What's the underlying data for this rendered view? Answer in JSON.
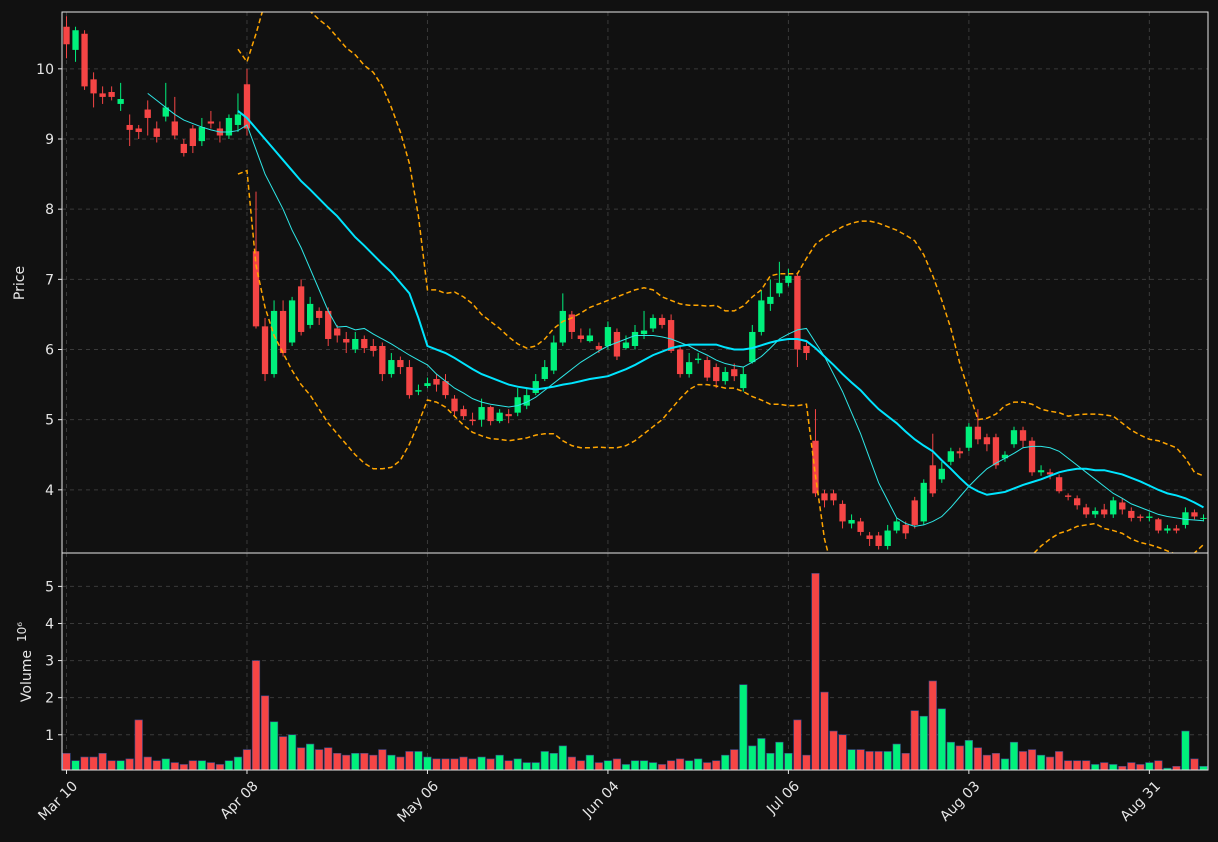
{
  "chart_data": {
    "type": "candlestick",
    "ylabel": "Price",
    "categories": [
      "Mar 10",
      null,
      null,
      null,
      null,
      null,
      null,
      null,
      null,
      null,
      null,
      null,
      null,
      null,
      null,
      null,
      null,
      null,
      null,
      null,
      "Apr 08",
      null,
      null,
      null,
      null,
      null,
      null,
      null,
      null,
      null,
      null,
      null,
      null,
      null,
      null,
      null,
      null,
      null,
      null,
      null,
      "May 06",
      null,
      null,
      null,
      null,
      null,
      null,
      null,
      null,
      null,
      null,
      null,
      null,
      null,
      null,
      null,
      null,
      null,
      null,
      null,
      "Jun 04",
      null,
      null,
      null,
      null,
      null,
      null,
      null,
      null,
      null,
      null,
      null,
      null,
      null,
      null,
      null,
      null,
      null,
      null,
      null,
      "Jul 06",
      null,
      null,
      null,
      null,
      null,
      null,
      null,
      null,
      null,
      null,
      null,
      null,
      null,
      null,
      null,
      null,
      null,
      null,
      null,
      "Aug 03",
      null,
      null,
      null,
      null,
      null,
      null,
      null,
      null,
      null,
      null,
      null,
      null,
      null,
      null,
      null,
      null,
      null,
      null,
      null,
      "Aug 31",
      null,
      null,
      null,
      null,
      null,
      null
    ],
    "open": [
      10.6,
      10.27,
      10.5,
      9.85,
      9.65,
      9.67,
      9.5,
      9.2,
      9.15,
      9.42,
      9.15,
      9.32,
      9.25,
      8.93,
      9.15,
      8.97,
      9.25,
      9.15,
      9.05,
      9.2,
      9.78,
      7.4,
      6.33,
      5.65,
      6.55,
      6.1,
      6.9,
      6.35,
      6.55,
      6.55,
      6.3,
      6.15,
      6.0,
      6.15,
      6.05,
      6.05,
      5.65,
      5.85,
      5.75,
      5.4,
      5.48,
      5.58,
      5.55,
      5.3,
      5.15,
      5.0,
      5.0,
      5.18,
      4.98,
      5.08,
      5.1,
      5.2,
      5.38,
      5.58,
      5.7,
      6.1,
      6.5,
      6.2,
      6.12,
      6.05,
      6.05,
      6.25,
      6.02,
      6.05,
      6.22,
      6.3,
      6.45,
      6.42,
      6.0,
      5.65,
      5.85,
      5.85,
      5.75,
      5.55,
      5.72,
      5.45,
      5.82,
      6.25,
      6.65,
      6.8,
      6.95,
      7.05,
      6.05,
      4.7,
      3.95,
      3.95,
      3.8,
      3.52,
      3.55,
      3.35,
      3.35,
      3.2,
      3.42,
      3.5,
      3.85,
      3.55,
      4.35,
      4.15,
      4.4,
      4.55,
      4.6,
      4.9,
      4.75,
      4.75,
      4.45,
      4.65,
      4.85,
      4.7,
      4.25,
      4.25,
      4.18,
      3.92,
      3.88,
      3.75,
      3.65,
      3.72,
      3.65,
      3.82,
      3.7,
      3.62,
      3.6,
      3.58,
      3.42,
      3.45,
      3.5,
      3.68,
      3.6
    ],
    "high": [
      10.75,
      10.6,
      10.55,
      9.95,
      9.75,
      9.75,
      9.8,
      9.35,
      9.2,
      9.55,
      9.25,
      9.8,
      9.6,
      9.0,
      9.2,
      9.3,
      9.4,
      9.25,
      9.35,
      9.65,
      10.0,
      8.25,
      6.45,
      6.7,
      6.7,
      6.75,
      7.0,
      6.75,
      6.6,
      6.6,
      6.35,
      6.25,
      6.25,
      6.2,
      6.15,
      6.1,
      5.95,
      5.9,
      5.85,
      5.5,
      5.6,
      5.65,
      5.65,
      5.35,
      5.2,
      5.1,
      5.3,
      5.2,
      5.15,
      5.15,
      5.45,
      5.45,
      5.65,
      5.85,
      6.2,
      6.8,
      6.55,
      6.3,
      6.3,
      6.1,
      6.4,
      6.3,
      6.2,
      6.35,
      6.55,
      6.5,
      6.5,
      6.5,
      6.05,
      5.95,
      5.95,
      5.9,
      5.8,
      5.75,
      5.8,
      5.75,
      6.35,
      6.85,
      7.0,
      7.25,
      7.15,
      7.1,
      6.1,
      5.15,
      4.0,
      4.0,
      3.85,
      3.65,
      3.6,
      3.4,
      3.4,
      3.5,
      3.6,
      3.55,
      3.9,
      4.15,
      4.8,
      4.4,
      4.6,
      4.6,
      4.95,
      5.15,
      4.8,
      4.8,
      4.55,
      4.9,
      4.9,
      4.75,
      4.35,
      4.3,
      4.22,
      3.95,
      3.92,
      3.8,
      3.75,
      3.8,
      3.9,
      3.88,
      3.75,
      3.65,
      3.68,
      3.6,
      3.5,
      3.5,
      3.75,
      3.72,
      3.65
    ],
    "low": [
      10.15,
      10.1,
      9.7,
      9.45,
      9.5,
      9.55,
      9.4,
      8.9,
      9.0,
      9.05,
      8.95,
      9.25,
      9.0,
      8.75,
      8.8,
      8.9,
      9.15,
      8.95,
      9.0,
      9.1,
      9.05,
      6.3,
      5.55,
      5.6,
      5.9,
      6.05,
      6.2,
      6.3,
      6.35,
      6.05,
      6.1,
      5.95,
      5.95,
      5.95,
      5.9,
      5.55,
      5.6,
      5.65,
      5.3,
      5.35,
      5.45,
      5.4,
      5.3,
      5.05,
      5.0,
      4.92,
      4.9,
      4.92,
      4.95,
      4.95,
      5.05,
      5.15,
      5.35,
      5.55,
      5.65,
      6.05,
      6.15,
      6.1,
      6.1,
      5.95,
      6.0,
      5.85,
      6.0,
      6.0,
      6.15,
      6.25,
      6.3,
      5.95,
      5.6,
      5.6,
      5.8,
      5.55,
      5.45,
      5.5,
      5.55,
      5.4,
      5.8,
      6.2,
      6.55,
      6.75,
      6.9,
      5.75,
      5.85,
      3.9,
      3.75,
      3.78,
      3.45,
      3.45,
      3.35,
      3.2,
      3.15,
      3.15,
      3.38,
      3.3,
      3.45,
      3.5,
      3.9,
      4.1,
      4.35,
      4.45,
      4.55,
      4.65,
      4.55,
      4.3,
      4.4,
      4.6,
      4.6,
      4.2,
      4.2,
      4.15,
      3.95,
      3.85,
      3.72,
      3.6,
      3.6,
      3.6,
      3.6,
      3.65,
      3.55,
      3.55,
      3.55,
      3.38,
      3.38,
      3.38,
      3.45,
      3.58,
      3.55
    ],
    "close": [
      10.35,
      10.55,
      9.75,
      9.65,
      9.6,
      9.6,
      9.57,
      9.13,
      9.1,
      9.3,
      9.03,
      9.45,
      9.05,
      8.8,
      8.9,
      9.17,
      9.22,
      9.05,
      9.3,
      9.35,
      9.15,
      6.33,
      5.65,
      6.55,
      5.95,
      6.7,
      6.25,
      6.65,
      6.45,
      6.15,
      6.2,
      6.1,
      6.15,
      6.02,
      5.98,
      5.65,
      5.85,
      5.75,
      5.35,
      5.42,
      5.52,
      5.5,
      5.35,
      5.12,
      5.05,
      4.98,
      5.18,
      4.98,
      5.1,
      5.05,
      5.32,
      5.35,
      5.55,
      5.75,
      6.1,
      6.55,
      6.25,
      6.15,
      6.2,
      6.0,
      6.32,
      5.9,
      6.1,
      6.25,
      6.27,
      6.45,
      6.35,
      5.98,
      5.65,
      5.82,
      5.87,
      5.6,
      5.55,
      5.68,
      5.62,
      5.65,
      6.25,
      6.7,
      6.75,
      6.95,
      7.05,
      6.0,
      5.95,
      3.95,
      3.85,
      3.85,
      3.55,
      3.57,
      3.4,
      3.3,
      3.2,
      3.42,
      3.55,
      3.38,
      3.5,
      4.1,
      3.95,
      4.3,
      4.55,
      4.52,
      4.9,
      4.72,
      4.65,
      4.35,
      4.5,
      4.85,
      4.7,
      4.25,
      4.28,
      4.22,
      3.98,
      3.9,
      3.78,
      3.65,
      3.7,
      3.65,
      3.85,
      3.72,
      3.6,
      3.6,
      3.62,
      3.42,
      3.45,
      3.42,
      3.68,
      3.62,
      3.6
    ],
    "up_color": "#00f07c",
    "down_color": "#f54545",
    "xlim": [
      -0.5,
      126.5
    ],
    "ylim": [
      3.1,
      10.81
    ],
    "yticks": [
      4,
      5,
      6,
      7,
      8,
      9,
      10
    ],
    "grid": true,
    "overlays": [
      {
        "color": "#2ee6e6",
        "values": [
          null,
          null,
          null,
          null,
          null,
          null,
          null,
          null,
          null,
          9.65,
          9.55,
          9.45,
          9.35,
          9.27,
          9.22,
          9.17,
          9.13,
          9.1,
          9.1,
          9.12,
          9.2,
          8.85,
          8.5,
          8.25,
          8.0,
          7.7,
          7.45,
          7.15,
          6.85,
          6.55,
          6.32,
          6.33,
          6.28,
          6.3,
          6.22,
          6.15,
          6.08,
          6.0,
          5.92,
          5.85,
          5.78,
          5.65,
          5.55,
          5.45,
          5.38,
          5.3,
          5.25,
          5.22,
          5.2,
          5.18,
          5.2,
          5.25,
          5.32,
          5.42,
          5.52,
          5.62,
          5.72,
          5.82,
          5.9,
          5.98,
          6.05,
          6.1,
          6.15,
          6.2,
          6.2,
          6.2,
          6.18,
          6.15,
          6.1,
          6.05,
          5.98,
          5.92,
          5.85,
          5.8,
          5.77,
          5.75,
          5.82,
          5.9,
          6.02,
          6.15,
          6.22,
          6.28,
          6.3,
          6.1,
          5.9,
          5.65,
          5.4,
          5.1,
          4.8,
          4.45,
          4.1,
          3.85,
          3.6,
          3.52,
          3.48,
          3.5,
          3.55,
          3.62,
          3.75,
          3.9,
          4.05,
          4.18,
          4.3,
          4.38,
          4.45,
          4.52,
          4.6,
          4.62,
          4.62,
          4.6,
          4.55,
          4.45,
          4.35,
          4.25,
          4.15,
          4.05,
          3.95,
          3.88,
          3.8,
          3.75,
          3.7,
          3.65,
          3.62,
          3.6,
          3.58,
          3.57,
          3.56
        ]
      },
      {
        "color": "#00e5ff",
        "values": [
          null,
          null,
          null,
          null,
          null,
          null,
          null,
          null,
          null,
          null,
          null,
          null,
          null,
          null,
          null,
          null,
          null,
          null,
          null,
          9.4,
          9.3,
          9.15,
          9.0,
          8.85,
          8.7,
          8.55,
          8.4,
          8.28,
          8.15,
          8.02,
          7.9,
          7.75,
          7.6,
          7.48,
          7.35,
          7.22,
          7.1,
          6.95,
          6.8,
          6.45,
          6.05,
          6.0,
          5.95,
          5.88,
          5.8,
          5.72,
          5.65,
          5.6,
          5.55,
          5.5,
          5.47,
          5.45,
          5.43,
          5.45,
          5.47,
          5.5,
          5.52,
          5.55,
          5.58,
          5.6,
          5.62,
          5.67,
          5.72,
          5.78,
          5.85,
          5.92,
          5.97,
          6.02,
          6.05,
          6.07,
          6.07,
          6.07,
          6.07,
          6.03,
          6.0,
          6.0,
          6.02,
          6.06,
          6.1,
          6.13,
          6.15,
          6.15,
          6.12,
          6.02,
          5.9,
          5.78,
          5.65,
          5.53,
          5.42,
          5.28,
          5.15,
          5.05,
          4.95,
          4.83,
          4.72,
          4.63,
          4.55,
          4.42,
          4.3,
          4.17,
          4.05,
          3.98,
          3.93,
          3.95,
          3.97,
          4.02,
          4.07,
          4.11,
          4.15,
          4.2,
          4.25,
          4.28,
          4.3,
          4.3,
          4.28,
          4.28,
          4.25,
          4.22,
          4.17,
          4.12,
          4.06,
          4.0,
          3.95,
          3.92,
          3.88,
          3.82,
          3.75
        ]
      },
      {
        "color": "#ffa500",
        "dashed": true,
        "values": [
          null,
          null,
          null,
          null,
          null,
          null,
          null,
          null,
          null,
          null,
          null,
          null,
          null,
          null,
          null,
          null,
          null,
          null,
          null,
          10.28,
          10.1,
          10.5,
          10.95,
          11.2,
          11.3,
          11.25,
          11.05,
          10.82,
          10.7,
          10.6,
          10.45,
          10.3,
          10.2,
          10.05,
          9.95,
          9.75,
          9.45,
          9.1,
          8.65,
          7.9,
          6.85,
          6.85,
          6.8,
          6.82,
          6.75,
          6.65,
          6.5,
          6.4,
          6.3,
          6.18,
          6.08,
          6.02,
          6.05,
          6.15,
          6.3,
          6.4,
          6.45,
          6.52,
          6.6,
          6.65,
          6.7,
          6.75,
          6.8,
          6.85,
          6.88,
          6.85,
          6.75,
          6.7,
          6.65,
          6.63,
          6.63,
          6.62,
          6.63,
          6.55,
          6.55,
          6.62,
          6.75,
          6.85,
          7.05,
          7.08,
          7.08,
          7.08,
          7.3,
          7.5,
          7.6,
          7.68,
          7.75,
          7.8,
          7.83,
          7.83,
          7.8,
          7.75,
          7.7,
          7.63,
          7.55,
          7.35,
          7.05,
          6.7,
          6.3,
          5.8,
          5.4,
          5.0,
          5.02,
          5.08,
          5.2,
          5.25,
          5.25,
          5.22,
          5.15,
          5.12,
          5.1,
          5.05,
          5.07,
          5.08,
          5.08,
          5.07,
          5.05,
          4.95,
          4.85,
          4.78,
          4.72,
          4.7,
          4.65,
          4.6,
          4.45,
          4.25,
          4.2
        ]
      },
      {
        "color": "#ffa500",
        "dashed": true,
        "values": [
          null,
          null,
          null,
          null,
          null,
          null,
          null,
          null,
          null,
          null,
          null,
          null,
          null,
          null,
          null,
          null,
          null,
          null,
          null,
          8.5,
          8.55,
          7.2,
          6.6,
          6.2,
          5.95,
          5.7,
          5.5,
          5.35,
          5.15,
          4.95,
          4.8,
          4.65,
          4.5,
          4.38,
          4.3,
          4.3,
          4.32,
          4.42,
          4.65,
          4.95,
          5.28,
          5.25,
          5.18,
          5.05,
          4.92,
          4.82,
          4.77,
          4.73,
          4.72,
          4.7,
          4.72,
          4.74,
          4.78,
          4.8,
          4.8,
          4.7,
          4.63,
          4.6,
          4.6,
          4.61,
          4.6,
          4.6,
          4.63,
          4.7,
          4.8,
          4.9,
          5.0,
          5.15,
          5.3,
          5.43,
          5.5,
          5.5,
          5.48,
          5.45,
          5.45,
          5.4,
          5.33,
          5.28,
          5.22,
          5.22,
          5.2,
          5.2,
          5.22,
          4.2,
          3.3,
          2.8,
          2.5,
          2.3,
          2.15,
          2.05,
          2.0,
          2.0,
          2.05,
          2.1,
          2.15,
          2.2,
          2.3,
          2.4,
          2.5,
          2.6,
          2.65,
          2.7,
          2.75,
          2.8,
          2.85,
          2.9,
          2.97,
          3.07,
          3.2,
          3.3,
          3.38,
          3.42,
          3.48,
          3.5,
          3.52,
          3.45,
          3.42,
          3.38,
          3.3,
          3.25,
          3.22,
          3.18,
          3.13,
          3.08,
          3.02,
          3.1,
          3.22
        ]
      }
    ],
    "volume": {
      "ylabel": "Volume",
      "exponent": "10⁶",
      "ylim": [
        0.05,
        5.9
      ],
      "yticks": [
        1,
        2,
        3,
        4,
        5
      ],
      "values": [
        0.5,
        0.3,
        0.4,
        0.4,
        0.5,
        0.3,
        0.3,
        0.35,
        1.4,
        0.4,
        0.3,
        0.35,
        0.25,
        0.2,
        0.3,
        0.3,
        0.25,
        0.2,
        0.3,
        0.4,
        0.6,
        3.0,
        2.05,
        1.35,
        0.95,
        1.0,
        0.65,
        0.75,
        0.6,
        0.65,
        0.5,
        0.45,
        0.5,
        0.5,
        0.45,
        0.6,
        0.45,
        0.4,
        0.55,
        0.55,
        0.4,
        0.35,
        0.35,
        0.35,
        0.4,
        0.35,
        0.4,
        0.35,
        0.45,
        0.3,
        0.35,
        0.25,
        0.25,
        0.55,
        0.5,
        0.7,
        0.4,
        0.3,
        0.45,
        0.25,
        0.3,
        0.35,
        0.2,
        0.3,
        0.3,
        0.25,
        0.2,
        0.3,
        0.35,
        0.3,
        0.35,
        0.25,
        0.3,
        0.45,
        0.6,
        2.35,
        0.7,
        0.9,
        0.5,
        0.8,
        0.5,
        1.4,
        0.45,
        5.35,
        2.15,
        1.1,
        1.0,
        0.6,
        0.6,
        0.55,
        0.55,
        0.55,
        0.75,
        0.5,
        1.65,
        1.5,
        2.45,
        1.7,
        0.8,
        0.7,
        0.85,
        0.65,
        0.45,
        0.5,
        0.35,
        0.8,
        0.55,
        0.6,
        0.45,
        0.4,
        0.55,
        0.3,
        0.3,
        0.3,
        0.2,
        0.25,
        0.2,
        0.15,
        0.25,
        0.2,
        0.25,
        0.3,
        0.1,
        0.15,
        1.1,
        0.35,
        0.15
      ]
    }
  }
}
